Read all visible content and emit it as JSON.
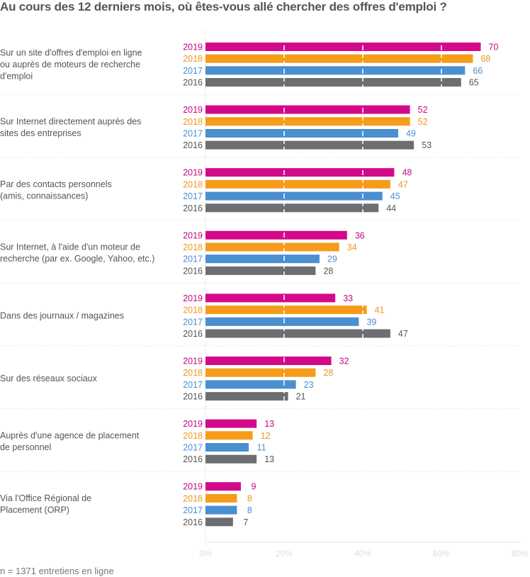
{
  "chart_data": {
    "type": "bar",
    "orientation": "horizontal",
    "title": "Au cours des 12 derniers mois, où êtes-vous allé chercher des offres d'emploi ?",
    "footnote": "n = 1371 entretiens en ligne",
    "xlim": [
      0,
      80
    ],
    "x_ticks": [
      "0%",
      "20%",
      "40%",
      "60%",
      "80%"
    ],
    "grid": true,
    "categories": [
      [
        "Sur un site d'offres d'emploi en ligne",
        "ou auprès de moteurs de recherche",
        "d'emploi"
      ],
      [
        "Sur Internet directement auprès des",
        "sites des entreprises"
      ],
      [
        "Par des contacts personnels",
        "(amis, connaissances)"
      ],
      [
        "Sur Internet, à l'aide d'un moteur de",
        "recherche (par ex. Google, Yahoo, etc.)"
      ],
      [
        "Dans des journaux / magazines"
      ],
      [
        "Sur des réseaux sociaux"
      ],
      [
        "Auprès d'une agence de placement",
        "de personnel"
      ],
      [
        "Via l'Office Régional de",
        "Placement (ORP)"
      ]
    ],
    "series": [
      {
        "name": "2019",
        "color": "#d4098a",
        "values": [
          70,
          52,
          48,
          36,
          33,
          32,
          13,
          9
        ]
      },
      {
        "name": "2018",
        "color": "#f59c1a",
        "values": [
          68,
          52,
          47,
          34,
          41,
          28,
          12,
          8
        ]
      },
      {
        "name": "2017",
        "color": "#4a8fd0",
        "values": [
          66,
          49,
          45,
          29,
          39,
          23,
          11,
          8
        ]
      },
      {
        "name": "2016",
        "color": "#6d6e71",
        "values": [
          65,
          53,
          44,
          28,
          47,
          21,
          13,
          7
        ]
      }
    ],
    "label_colors": {
      "2019": "#c0097d",
      "2018": "#ee9620",
      "2017": "#4a8fd0",
      "2016": "#555555"
    }
  }
}
